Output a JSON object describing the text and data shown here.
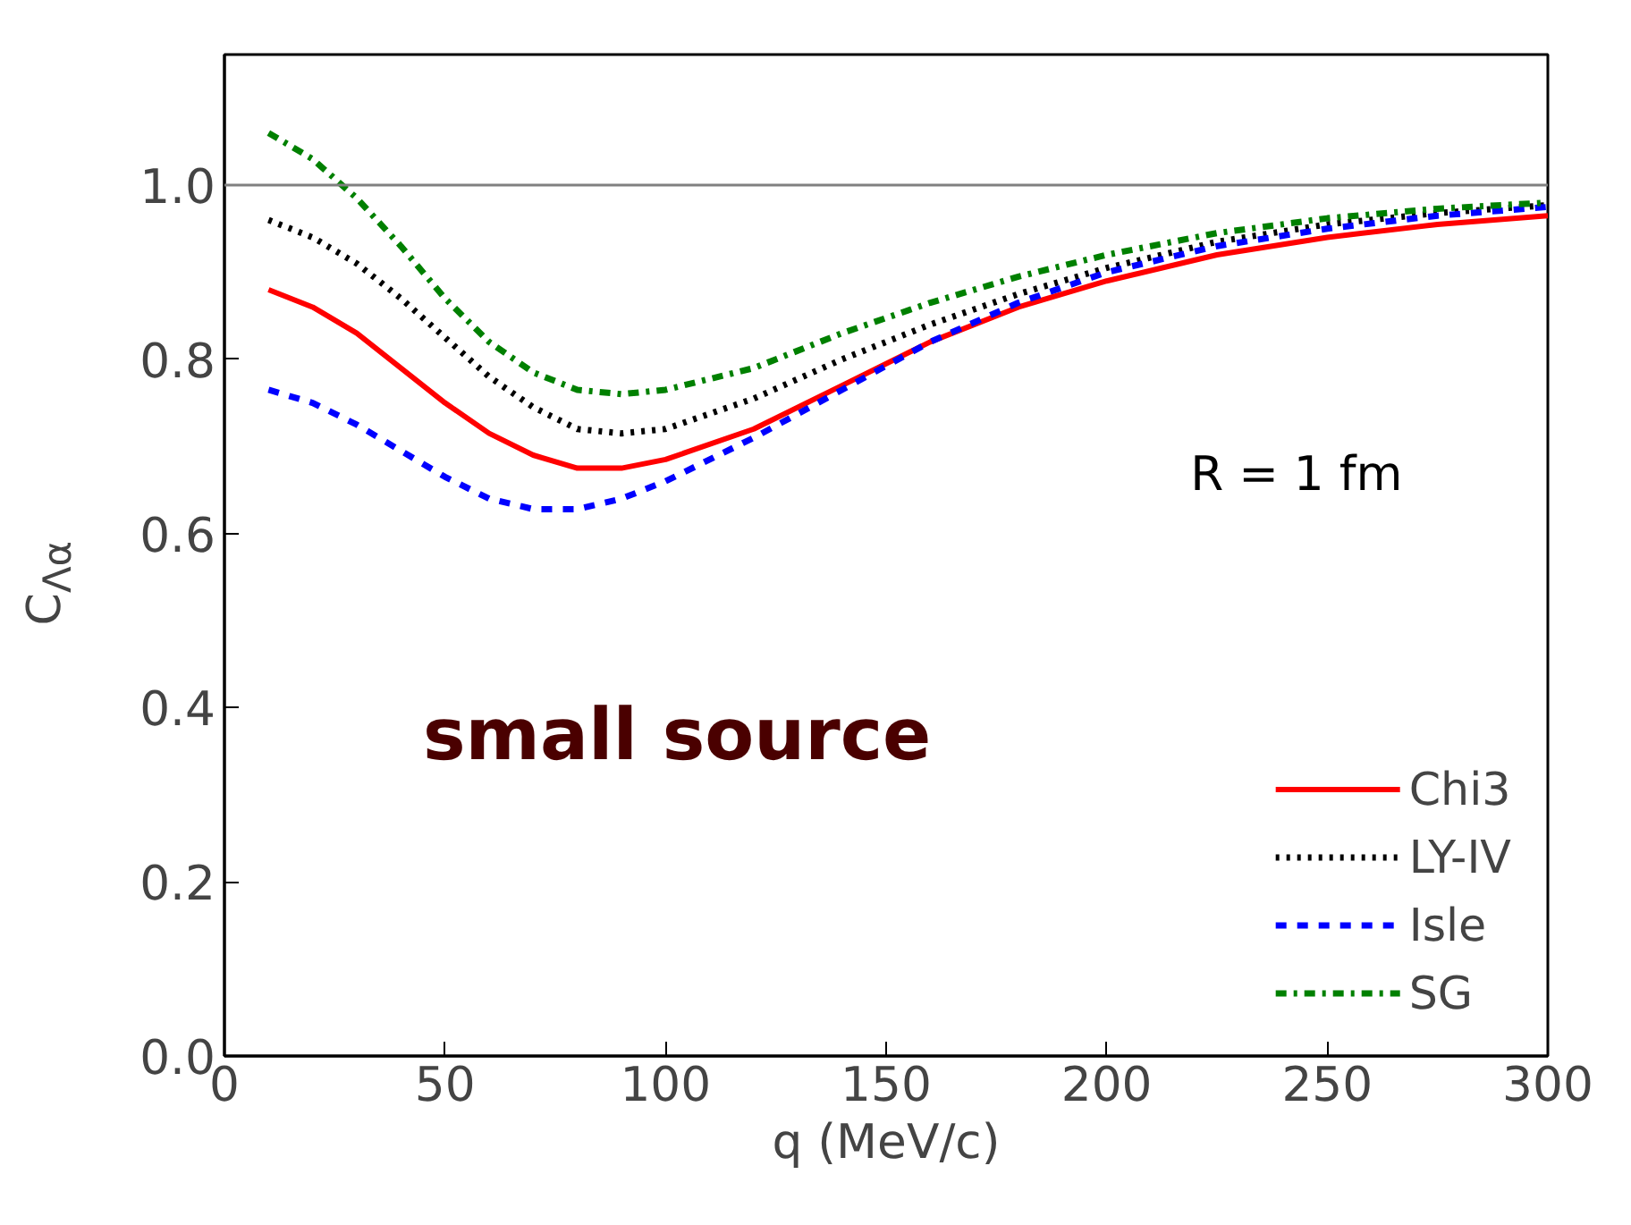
{
  "chart_data": {
    "type": "line",
    "xlabel": "q (MeV/c)",
    "ylabel": "C$_{Λα}$",
    "x": [
      10,
      20,
      30,
      40,
      50,
      60,
      70,
      80,
      90,
      100,
      120,
      140,
      160,
      180,
      200,
      225,
      250,
      275,
      300
    ],
    "series": [
      {
        "name": "Chi3",
        "color": "#ff0000",
        "line_style": "solid",
        "values": [
          0.88,
          0.86,
          0.83,
          0.79,
          0.75,
          0.715,
          0.69,
          0.675,
          0.675,
          0.685,
          0.72,
          0.77,
          0.82,
          0.86,
          0.89,
          0.92,
          0.94,
          0.955,
          0.965
        ]
      },
      {
        "name": "LY-IV",
        "color": "#000000",
        "line_style": "dotted",
        "values": [
          0.96,
          0.94,
          0.91,
          0.87,
          0.825,
          0.78,
          0.745,
          0.72,
          0.715,
          0.72,
          0.755,
          0.8,
          0.84,
          0.875,
          0.905,
          0.935,
          0.955,
          0.968,
          0.977
        ]
      },
      {
        "name": "Isle",
        "color": "#0000ff",
        "line_style": "dashed",
        "values": [
          0.765,
          0.75,
          0.725,
          0.695,
          0.665,
          0.64,
          0.628,
          0.628,
          0.64,
          0.66,
          0.71,
          0.765,
          0.82,
          0.865,
          0.9,
          0.93,
          0.95,
          0.965,
          0.975
        ]
      },
      {
        "name": "SG",
        "color": "#008000",
        "line_style": "dashdot",
        "values": [
          1.06,
          1.03,
          0.985,
          0.93,
          0.87,
          0.82,
          0.785,
          0.765,
          0.76,
          0.765,
          0.79,
          0.83,
          0.865,
          0.895,
          0.92,
          0.945,
          0.962,
          0.973,
          0.98
        ]
      }
    ],
    "xlim": [
      0,
      300
    ],
    "xticks": [
      0,
      50,
      100,
      150,
      200,
      250,
      300
    ],
    "ylim": [
      0,
      1.15
    ],
    "yticks": [
      {
        "value": 0,
        "label": "0.0"
      },
      {
        "value": 0.2,
        "label": "0.2"
      },
      {
        "value": 0.4,
        "label": "0.4"
      },
      {
        "value": 0.6,
        "label": "0.6"
      },
      {
        "value": 0.8,
        "label": "0.8"
      },
      {
        "value": 1,
        "label": "1.0"
      }
    ],
    "ref_lines": [
      {
        "axis": "y",
        "value": 1.0,
        "color": "#808080"
      }
    ],
    "annotations": [
      "R = 1 fm",
      "small source"
    ],
    "legend": "bottom right",
    "grid": false
  }
}
